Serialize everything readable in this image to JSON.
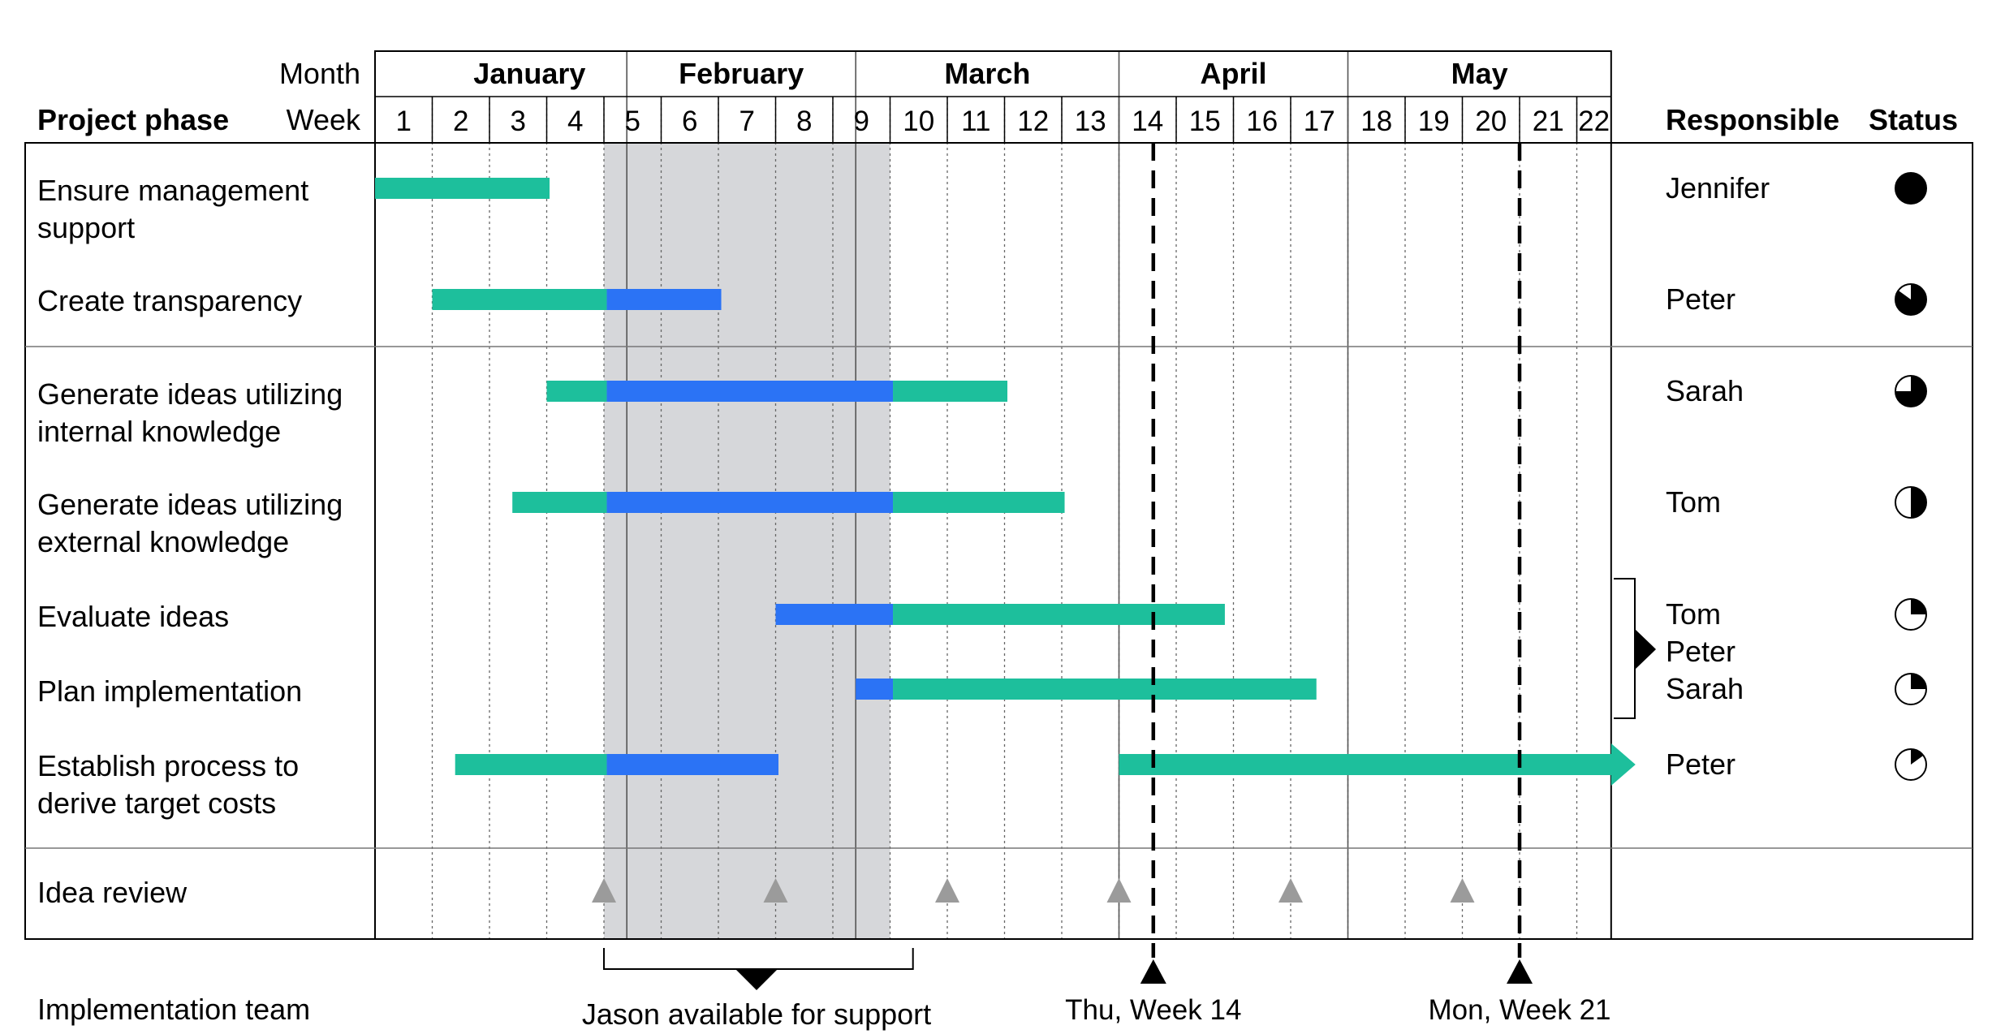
{
  "header": {
    "month_label": "Month",
    "week_label": "Week",
    "phase_label": "Project phase",
    "responsible_label": "Responsible",
    "status_label": "Status"
  },
  "months": [
    {
      "name": "January",
      "start_week": 1,
      "end_week": 4.4
    },
    {
      "name": "February",
      "start_week": 4.4,
      "end_week": 8.4
    },
    {
      "name": "March",
      "start_week": 8.4,
      "end_week": 13
    },
    {
      "name": "April",
      "start_week": 13,
      "end_week": 17
    },
    {
      "name": "May",
      "start_week": 17,
      "end_week": 21.6
    }
  ],
  "weeks": [
    "1",
    "2",
    "3",
    "4",
    "5",
    "6",
    "7",
    "8",
    "9",
    "10",
    "11",
    "12",
    "13",
    "14",
    "15",
    "16",
    "17",
    "18",
    "19",
    "20",
    "21",
    "22"
  ],
  "colors": {
    "planned": "#1dbf9c",
    "in_progress": "#2b73f5",
    "shade": "#d6d7da",
    "milestone": "#9b9b9b"
  },
  "chart_data": {
    "type": "gantt",
    "x_unit": "week",
    "x_range": [
      0,
      21.6
    ],
    "tasks": [
      {
        "name": "Ensure management support",
        "lines": [
          "Ensure management",
          "support"
        ],
        "responsible": [
          "Jennifer"
        ],
        "status": 1.0,
        "segments": [
          {
            "start": 0,
            "end": 3.05,
            "kind": "planned"
          }
        ]
      },
      {
        "name": "Create transparency",
        "lines": [
          "Create transparency"
        ],
        "responsible": [
          "Peter"
        ],
        "status": 0.85,
        "segments": [
          {
            "start": 1,
            "end": 4.05,
            "kind": "planned"
          },
          {
            "start": 4.05,
            "end": 6.05,
            "kind": "in_progress"
          }
        ]
      },
      {
        "name": "Generate ideas utilizing internal knowledge",
        "lines": [
          "Generate ideas utilizing",
          "internal knowledge"
        ],
        "responsible": [
          "Sarah"
        ],
        "status": 0.75,
        "segments": [
          {
            "start": 3,
            "end": 4.05,
            "kind": "planned"
          },
          {
            "start": 4.05,
            "end": 9.05,
            "kind": "in_progress"
          },
          {
            "start": 9.05,
            "end": 11.05,
            "kind": "planned"
          }
        ]
      },
      {
        "name": "Generate ideas utilizing external knowledge",
        "lines": [
          "Generate ideas utilizing",
          "external knowledge"
        ],
        "responsible": [
          "Tom"
        ],
        "status": 0.5,
        "segments": [
          {
            "start": 2.4,
            "end": 4.05,
            "kind": "planned"
          },
          {
            "start": 4.05,
            "end": 9.05,
            "kind": "in_progress"
          },
          {
            "start": 9.05,
            "end": 12.05,
            "kind": "planned"
          }
        ]
      },
      {
        "name": "Evaluate ideas",
        "lines": [
          "Evaluate ideas"
        ],
        "responsible": [],
        "status": 0.25,
        "segments": [
          {
            "start": 7,
            "end": 9.05,
            "kind": "in_progress"
          },
          {
            "start": 9.05,
            "end": 14.85,
            "kind": "planned"
          }
        ]
      },
      {
        "name": "Plan implementation",
        "lines": [
          "Plan implementation"
        ],
        "responsible": [],
        "status": 0.25,
        "segments": [
          {
            "start": 8.4,
            "end": 9.05,
            "kind": "in_progress"
          },
          {
            "start": 9.05,
            "end": 16.45,
            "kind": "planned"
          }
        ]
      },
      {
        "name": "Establish process to derive target costs",
        "lines": [
          "Establish process to",
          "derive target costs"
        ],
        "responsible": [
          "Peter"
        ],
        "status": 0.15,
        "segments": [
          {
            "start": 1.4,
            "end": 4.05,
            "kind": "planned"
          },
          {
            "start": 4.05,
            "end": 7.05,
            "kind": "in_progress"
          },
          {
            "start": 13,
            "end": 21.6,
            "kind": "planned",
            "arrow": true
          }
        ]
      }
    ],
    "shared_responsible": [
      "Tom",
      "Peter",
      "Sarah"
    ],
    "review": {
      "label": "Idea review",
      "weeks": [
        4,
        7,
        10,
        13,
        16,
        19
      ]
    },
    "shaded_range": [
      4,
      9
    ],
    "support": {
      "label": "Jason available for support",
      "start": 4,
      "end": 9.4
    },
    "markers": [
      {
        "label": "Thu, Week 14",
        "week": 13.6
      },
      {
        "label": "Mon, Week 21",
        "week": 20
      }
    ],
    "team_label": "Implementation team"
  }
}
